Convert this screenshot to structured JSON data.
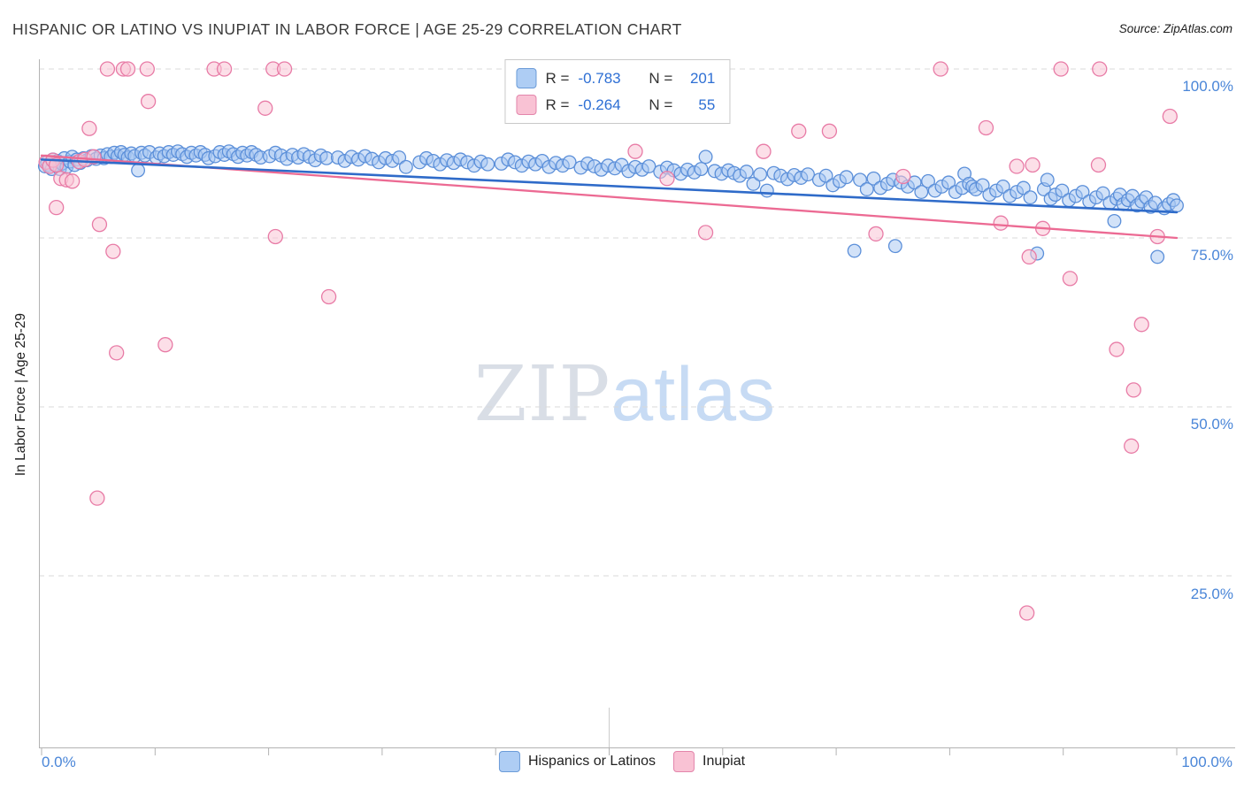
{
  "header": {
    "title": "HISPANIC OR LATINO VS INUPIAT IN LABOR FORCE | AGE 25-29 CORRELATION CHART",
    "source": "Source: ZipAtlas.com"
  },
  "watermark": {
    "part1": "ZIP",
    "part2": "atlas"
  },
  "axes": {
    "y_label": "In Labor Force | Age 25-29",
    "right_ticks": [
      "100.0%",
      "75.0%",
      "50.0%",
      "25.0%"
    ],
    "x_min_label": "0.0%",
    "x_max_label": "100.0%"
  },
  "legend_box": {
    "rows": [
      {
        "r_label": "R =",
        "r_value": "-0.783",
        "n_label": "N =",
        "n_value": "201"
      },
      {
        "r_label": "R =",
        "r_value": "-0.264",
        "n_label": "N =",
        "n_value": "55"
      }
    ]
  },
  "bottom_legend": {
    "series1_label": "Hispanics or Latinos",
    "series2_label": "Inupiat"
  },
  "colors": {
    "axis_label_blue": "#4a86d8",
    "blue_point_fill": "#a5c6f2",
    "blue_point_stroke": "#5b8fd9",
    "pink_point_fill": "#fac4d6",
    "pink_point_stroke": "#e87ba6",
    "blue_trend": "#2f6bc9",
    "pink_trend": "#ec6a93",
    "gridline": "#d9d9d9"
  },
  "chart_data": {
    "type": "scatter",
    "title": "HISPANIC OR LATINO VS INUPIAT IN LABOR FORCE | AGE 25-29 CORRELATION CHART",
    "ylabel": "In Labor Force | Age 25-29",
    "x_axis": {
      "min": 0,
      "max": 1,
      "tick_step": 0.1,
      "min_label": "0.0%",
      "max_label": "100.0%"
    },
    "y_axis": {
      "gridline_values": [
        1.0,
        0.75,
        0.5,
        0.25
      ],
      "tick_labels": [
        "100.0%",
        "75.0%",
        "50.0%",
        "25.0%"
      ]
    },
    "legend_position": "bottom-center",
    "series": [
      {
        "name": "Hispanics or Latinos",
        "R": -0.783,
        "N": 201,
        "fill": "#a5c6f2",
        "fill_opacity": 0.5,
        "stroke": "#5b8fd9",
        "radius": 7.3,
        "point_name": "scatter-point-hispanic",
        "points": [
          [
            0.003,
            0.856
          ],
          [
            0.005,
            0.862
          ],
          [
            0.007,
            0.858
          ],
          [
            0.009,
            0.852
          ],
          [
            0.01,
            0.866
          ],
          [
            0.012,
            0.858
          ],
          [
            0.014,
            0.864
          ],
          [
            0.016,
            0.852
          ],
          [
            0.018,
            0.86
          ],
          [
            0.02,
            0.868
          ],
          [
            0.022,
            0.855
          ],
          [
            0.025,
            0.863
          ],
          [
            0.027,
            0.87
          ],
          [
            0.029,
            0.858
          ],
          [
            0.031,
            0.866
          ],
          [
            0.034,
            0.861
          ],
          [
            0.037,
            0.868
          ],
          [
            0.04,
            0.865
          ],
          [
            0.044,
            0.871
          ],
          [
            0.048,
            0.867
          ],
          [
            0.052,
            0.872
          ],
          [
            0.055,
            0.868
          ],
          [
            0.058,
            0.874
          ],
          [
            0.061,
            0.87
          ],
          [
            0.064,
            0.876
          ],
          [
            0.067,
            0.871
          ],
          [
            0.07,
            0.877
          ],
          [
            0.073,
            0.873
          ],
          [
            0.076,
            0.869
          ],
          [
            0.079,
            0.875
          ],
          [
            0.082,
            0.871
          ],
          [
            0.085,
            0.85
          ],
          [
            0.088,
            0.876
          ],
          [
            0.091,
            0.872
          ],
          [
            0.095,
            0.877
          ],
          [
            0.101,
            0.869
          ],
          [
            0.104,
            0.875
          ],
          [
            0.108,
            0.871
          ],
          [
            0.112,
            0.877
          ],
          [
            0.116,
            0.873
          ],
          [
            0.12,
            0.878
          ],
          [
            0.124,
            0.874
          ],
          [
            0.128,
            0.87
          ],
          [
            0.132,
            0.876
          ],
          [
            0.136,
            0.872
          ],
          [
            0.14,
            0.877
          ],
          [
            0.144,
            0.873
          ],
          [
            0.147,
            0.868
          ],
          [
            0.153,
            0.871
          ],
          [
            0.157,
            0.877
          ],
          [
            0.161,
            0.873
          ],
          [
            0.165,
            0.878
          ],
          [
            0.169,
            0.874
          ],
          [
            0.173,
            0.87
          ],
          [
            0.177,
            0.876
          ],
          [
            0.181,
            0.872
          ],
          [
            0.185,
            0.877
          ],
          [
            0.189,
            0.873
          ],
          [
            0.193,
            0.869
          ],
          [
            0.201,
            0.871
          ],
          [
            0.206,
            0.876
          ],
          [
            0.211,
            0.872
          ],
          [
            0.216,
            0.867
          ],
          [
            0.221,
            0.873
          ],
          [
            0.226,
            0.869
          ],
          [
            0.231,
            0.874
          ],
          [
            0.236,
            0.87
          ],
          [
            0.241,
            0.865
          ],
          [
            0.246,
            0.872
          ],
          [
            0.251,
            0.868
          ],
          [
            0.261,
            0.869
          ],
          [
            0.267,
            0.864
          ],
          [
            0.273,
            0.87
          ],
          [
            0.279,
            0.866
          ],
          [
            0.285,
            0.871
          ],
          [
            0.291,
            0.867
          ],
          [
            0.297,
            0.862
          ],
          [
            0.303,
            0.868
          ],
          [
            0.309,
            0.864
          ],
          [
            0.315,
            0.869
          ],
          [
            0.321,
            0.855
          ],
          [
            0.333,
            0.862
          ],
          [
            0.339,
            0.868
          ],
          [
            0.345,
            0.864
          ],
          [
            0.351,
            0.859
          ],
          [
            0.357,
            0.865
          ],
          [
            0.363,
            0.861
          ],
          [
            0.369,
            0.866
          ],
          [
            0.375,
            0.862
          ],
          [
            0.381,
            0.857
          ],
          [
            0.387,
            0.863
          ],
          [
            0.393,
            0.859
          ],
          [
            0.405,
            0.86
          ],
          [
            0.411,
            0.866
          ],
          [
            0.417,
            0.862
          ],
          [
            0.423,
            0.857
          ],
          [
            0.429,
            0.863
          ],
          [
            0.435,
            0.859
          ],
          [
            0.441,
            0.864
          ],
          [
            0.447,
            0.855
          ],
          [
            0.453,
            0.861
          ],
          [
            0.459,
            0.857
          ],
          [
            0.465,
            0.862
          ],
          [
            0.475,
            0.854
          ],
          [
            0.481,
            0.86
          ],
          [
            0.487,
            0.856
          ],
          [
            0.493,
            0.851
          ],
          [
            0.499,
            0.857
          ],
          [
            0.505,
            0.853
          ],
          [
            0.511,
            0.858
          ],
          [
            0.517,
            0.849
          ],
          [
            0.523,
            0.855
          ],
          [
            0.529,
            0.851
          ],
          [
            0.535,
            0.856
          ],
          [
            0.545,
            0.848
          ],
          [
            0.551,
            0.854
          ],
          [
            0.557,
            0.85
          ],
          [
            0.563,
            0.845
          ],
          [
            0.569,
            0.851
          ],
          [
            0.575,
            0.847
          ],
          [
            0.581,
            0.852
          ],
          [
            0.585,
            0.87
          ],
          [
            0.593,
            0.849
          ],
          [
            0.599,
            0.845
          ],
          [
            0.605,
            0.85
          ],
          [
            0.61,
            0.846
          ],
          [
            0.615,
            0.842
          ],
          [
            0.621,
            0.848
          ],
          [
            0.627,
            0.83
          ],
          [
            0.633,
            0.844
          ],
          [
            0.639,
            0.82
          ],
          [
            0.645,
            0.846
          ],
          [
            0.651,
            0.842
          ],
          [
            0.657,
            0.837
          ],
          [
            0.663,
            0.843
          ],
          [
            0.669,
            0.839
          ],
          [
            0.675,
            0.844
          ],
          [
            0.685,
            0.836
          ],
          [
            0.691,
            0.842
          ],
          [
            0.697,
            0.828
          ],
          [
            0.703,
            0.834
          ],
          [
            0.709,
            0.84
          ],
          [
            0.716,
            0.731
          ],
          [
            0.721,
            0.836
          ],
          [
            0.727,
            0.822
          ],
          [
            0.733,
            0.838
          ],
          [
            0.739,
            0.824
          ],
          [
            0.745,
            0.83
          ],
          [
            0.75,
            0.836
          ],
          [
            0.752,
            0.738
          ],
          [
            0.757,
            0.832
          ],
          [
            0.763,
            0.826
          ],
          [
            0.769,
            0.832
          ],
          [
            0.775,
            0.818
          ],
          [
            0.781,
            0.834
          ],
          [
            0.787,
            0.82
          ],
          [
            0.793,
            0.826
          ],
          [
            0.799,
            0.832
          ],
          [
            0.805,
            0.818
          ],
          [
            0.811,
            0.824
          ],
          [
            0.813,
            0.845
          ],
          [
            0.817,
            0.83
          ],
          [
            0.82,
            0.826
          ],
          [
            0.823,
            0.822
          ],
          [
            0.829,
            0.828
          ],
          [
            0.835,
            0.814
          ],
          [
            0.841,
            0.82
          ],
          [
            0.847,
            0.826
          ],
          [
            0.853,
            0.812
          ],
          [
            0.859,
            0.818
          ],
          [
            0.865,
            0.824
          ],
          [
            0.871,
            0.81
          ],
          [
            0.877,
            0.727
          ],
          [
            0.883,
            0.822
          ],
          [
            0.886,
            0.836
          ],
          [
            0.889,
            0.808
          ],
          [
            0.893,
            0.814
          ],
          [
            0.899,
            0.82
          ],
          [
            0.905,
            0.806
          ],
          [
            0.911,
            0.812
          ],
          [
            0.917,
            0.818
          ],
          [
            0.923,
            0.804
          ],
          [
            0.929,
            0.81
          ],
          [
            0.935,
            0.816
          ],
          [
            0.941,
            0.802
          ],
          [
            0.945,
            0.775
          ],
          [
            0.947,
            0.808
          ],
          [
            0.95,
            0.814
          ],
          [
            0.953,
            0.8
          ],
          [
            0.957,
            0.806
          ],
          [
            0.961,
            0.812
          ],
          [
            0.965,
            0.798
          ],
          [
            0.969,
            0.804
          ],
          [
            0.973,
            0.81
          ],
          [
            0.977,
            0.796
          ],
          [
            0.981,
            0.802
          ],
          [
            0.983,
            0.722
          ],
          [
            0.989,
            0.794
          ],
          [
            0.993,
            0.8
          ],
          [
            0.997,
            0.806
          ],
          [
            1.0,
            0.798
          ]
        ]
      },
      {
        "name": "Inupiat",
        "R": -0.264,
        "N": 55,
        "fill": "#fac4d6",
        "fill_opacity": 0.55,
        "stroke": "#e87ba6",
        "radius": 8,
        "point_name": "scatter-point-inupiat",
        "points": [
          [
            0.058,
            1.0
          ],
          [
            0.072,
            1.0
          ],
          [
            0.076,
            1.0
          ],
          [
            0.093,
            1.0
          ],
          [
            0.152,
            1.0
          ],
          [
            0.161,
            1.0
          ],
          [
            0.204,
            1.0
          ],
          [
            0.214,
            1.0
          ],
          [
            0.792,
            1.0
          ],
          [
            0.898,
            1.0
          ],
          [
            0.932,
            1.0
          ],
          [
            0.094,
            0.952
          ],
          [
            0.197,
            0.942
          ],
          [
            0.042,
            0.912
          ],
          [
            0.832,
            0.913
          ],
          [
            0.667,
            0.908
          ],
          [
            0.694,
            0.908
          ],
          [
            0.523,
            0.878
          ],
          [
            0.636,
            0.878
          ],
          [
            0.004,
            0.862
          ],
          [
            0.007,
            0.856
          ],
          [
            0.01,
            0.865
          ],
          [
            0.013,
            0.858
          ],
          [
            0.017,
            0.838
          ],
          [
            0.022,
            0.836
          ],
          [
            0.027,
            0.834
          ],
          [
            0.033,
            0.863
          ],
          [
            0.038,
            0.866
          ],
          [
            0.046,
            0.87
          ],
          [
            0.013,
            0.795
          ],
          [
            0.051,
            0.77
          ],
          [
            0.063,
            0.73
          ],
          [
            0.066,
            0.58
          ],
          [
            0.049,
            0.365
          ],
          [
            0.109,
            0.592
          ],
          [
            0.206,
            0.752
          ],
          [
            0.253,
            0.663
          ],
          [
            0.551,
            0.838
          ],
          [
            0.585,
            0.758
          ],
          [
            0.735,
            0.756
          ],
          [
            0.759,
            0.841
          ],
          [
            0.859,
            0.856
          ],
          [
            0.873,
            0.858
          ],
          [
            0.845,
            0.772
          ],
          [
            0.882,
            0.764
          ],
          [
            0.906,
            0.69
          ],
          [
            0.947,
            0.585
          ],
          [
            0.969,
            0.622
          ],
          [
            0.962,
            0.525
          ],
          [
            0.96,
            0.442
          ],
          [
            0.868,
            0.195
          ],
          [
            0.994,
            0.93
          ],
          [
            0.983,
            0.752
          ],
          [
            0.87,
            0.722
          ],
          [
            0.931,
            0.858
          ]
        ]
      }
    ],
    "trend_lines": [
      {
        "name": "inupiat-trend-line",
        "color": "#ec6a93",
        "width": 2.3,
        "start": [
          0,
          0.872
        ],
        "end": [
          1,
          0.75
        ]
      },
      {
        "name": "hispanic-trend-line",
        "color": "#2f6bc9",
        "width": 2.6,
        "start": [
          0,
          0.866
        ],
        "end": [
          1,
          0.788
        ]
      }
    ]
  }
}
